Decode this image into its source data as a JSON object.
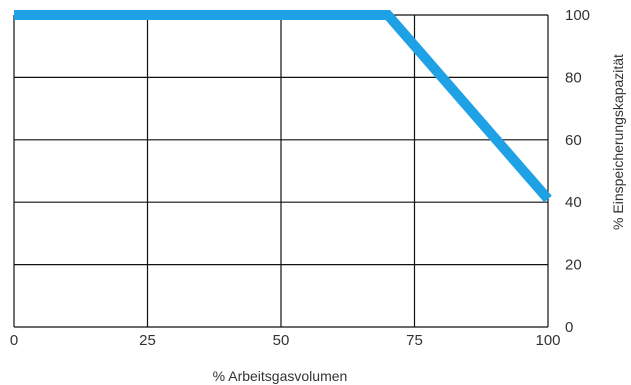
{
  "colors": {
    "series": "#1ea1e5",
    "grid": "#111111",
    "text": "#333333"
  },
  "chart_data": {
    "type": "line",
    "title": "",
    "xlabel": "% Arbeitsgasvolumen",
    "ylabel": "% Einspeicherungskapazität",
    "xlim": [
      0,
      100
    ],
    "ylim": [
      0,
      100
    ],
    "xticks": [
      0,
      25,
      50,
      75,
      100
    ],
    "xtick_labels": [
      "0",
      "25",
      "50",
      "75",
      "100"
    ],
    "yticks": [
      0,
      20,
      40,
      60,
      80,
      100
    ],
    "ytick_labels": [
      "0",
      "20",
      "40",
      "60",
      "80",
      "100"
    ],
    "y_axis_side": "right",
    "grid": true,
    "legend": "none",
    "series": [
      {
        "x": [
          0,
          70,
          100
        ],
        "y": [
          100,
          100,
          41
        ]
      }
    ]
  }
}
